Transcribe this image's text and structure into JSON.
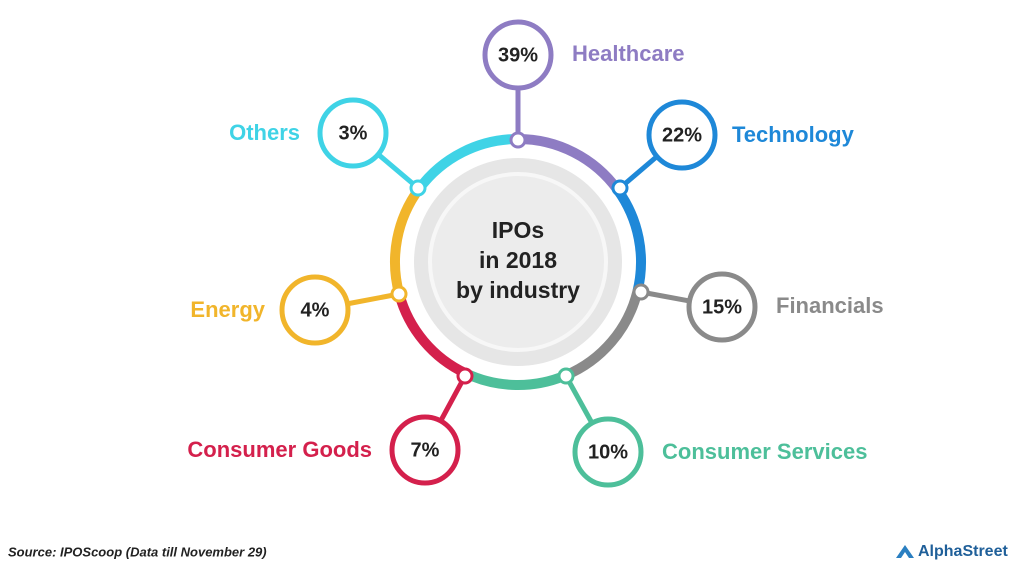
{
  "chart_data": {
    "type": "pie",
    "center_text": [
      "IPOs",
      "in 2018",
      "by industry"
    ],
    "categories": [
      "Healthcare",
      "Technology",
      "Financials",
      "Consumer Services",
      "Consumer Goods",
      "Energy",
      "Others"
    ],
    "values": [
      39,
      22,
      15,
      10,
      7,
      4,
      3
    ],
    "value_labels": [
      "39%",
      "22%",
      "15%",
      "10%",
      "7%",
      "4%",
      "3%"
    ],
    "colors": [
      "#8e7cc3",
      "#1e88d8",
      "#8a8a8a",
      "#4dbf9a",
      "#d4204c",
      "#f1b52b",
      "#3fd3e6"
    ]
  },
  "footer": {
    "source": "Source: IPOScoop (Data till November 29)",
    "brand": "AlphaStreet"
  }
}
